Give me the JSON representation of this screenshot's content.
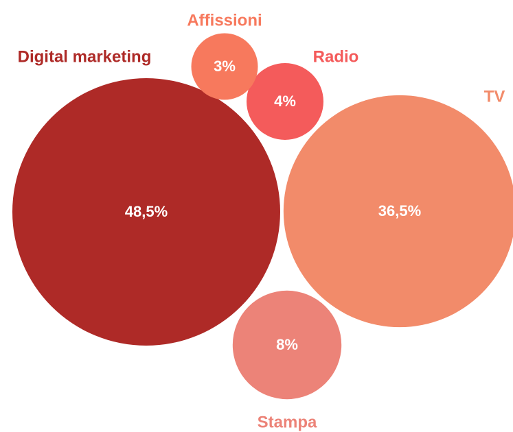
{
  "chart_data": {
    "type": "bubble",
    "categories": [
      "Digital marketing",
      "TV",
      "Stampa",
      "Radio",
      "Affissioni"
    ],
    "values": [
      48.5,
      36.5,
      8,
      4,
      3
    ],
    "value_labels": [
      "48,5%",
      "36,5%",
      "8%",
      "4%",
      "3%"
    ],
    "colors": [
      "#ae2a27",
      "#f28b6a",
      "#ec8378",
      "#f45b5b",
      "#f7795d"
    ]
  }
}
